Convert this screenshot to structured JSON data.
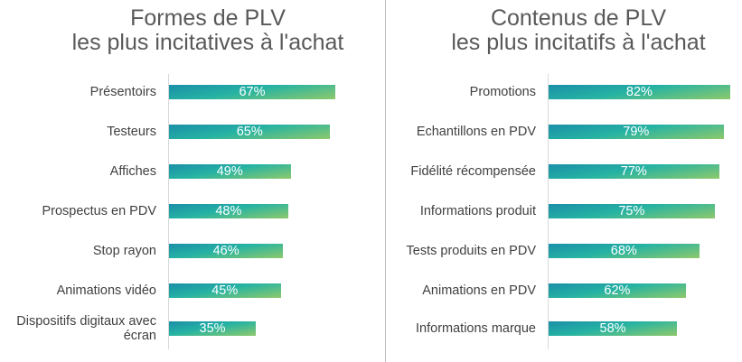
{
  "colors": {
    "bar_start": "#1a8fa8",
    "bar_mid": "#26b3a3",
    "bar_end": "#8ec96b",
    "title": "#595959",
    "label": "#404040"
  },
  "chart_data": [
    {
      "type": "bar",
      "orientation": "horizontal",
      "title": "Formes de PLV",
      "subtitle": "les plus incitatives à l'achat",
      "categories": [
        "Présentoirs",
        "Testeurs",
        "Affiches",
        "Prospectus en PDV",
        "Stop rayon",
        "Animations vidéo",
        "Dispositifs digitaux avec écran"
      ],
      "values": [
        67,
        65,
        49,
        48,
        46,
        45,
        35
      ],
      "value_labels": [
        "67%",
        "65%",
        "49%",
        "48%",
        "46%",
        "45%",
        "35%"
      ],
      "unit": "%",
      "xlim": [
        0,
        100
      ],
      "grid": false,
      "legend": "none"
    },
    {
      "type": "bar",
      "orientation": "horizontal",
      "title": "Contenus de PLV",
      "subtitle": "les plus incitatifs à l'achat",
      "categories": [
        "Promotions",
        "Echantillons en PDV",
        "Fidélité récompensée",
        "Informations produit",
        "Tests produits en PDV",
        "Animations en PDV",
        "Informations marque"
      ],
      "values": [
        82,
        79,
        77,
        75,
        68,
        62,
        58
      ],
      "value_labels": [
        "82%",
        "79%",
        "77%",
        "75%",
        "68%",
        "62%",
        "58%"
      ],
      "unit": "%",
      "xlim": [
        0,
        100
      ],
      "grid": false,
      "legend": "none"
    }
  ]
}
